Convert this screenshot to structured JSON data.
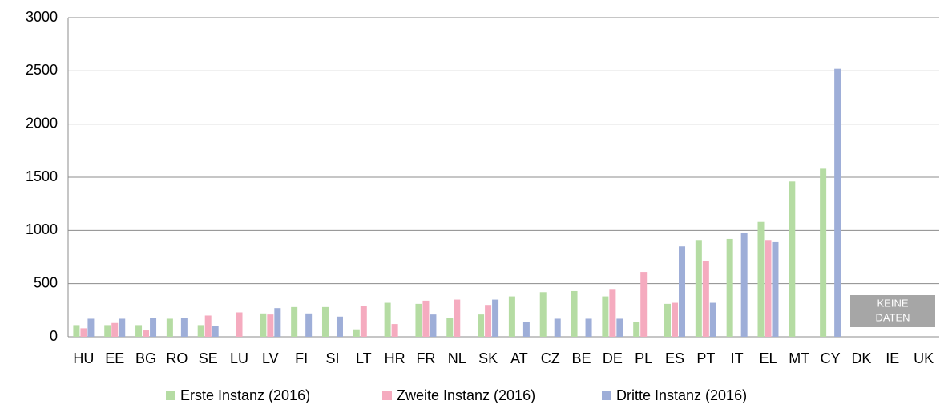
{
  "chart_data": {
    "type": "bar",
    "categories": [
      "HU",
      "EE",
      "BG",
      "RO",
      "SE",
      "LU",
      "LV",
      "FI",
      "SI",
      "LT",
      "HR",
      "FR",
      "NL",
      "SK",
      "AT",
      "CZ",
      "BE",
      "DE",
      "PL",
      "ES",
      "PT",
      "IT",
      "EL",
      "MT",
      "CY",
      "DK",
      "IE",
      "UK"
    ],
    "series": [
      {
        "name": "Erste Instanz (2016)",
        "color": "#b5dca3",
        "values": [
          110,
          110,
          110,
          170,
          110,
          null,
          220,
          280,
          280,
          70,
          320,
          310,
          180,
          210,
          380,
          420,
          430,
          380,
          140,
          310,
          910,
          920,
          1080,
          1460,
          1580,
          null,
          null,
          null
        ]
      },
      {
        "name": "Zweite Instanz (2016)",
        "color": "#f5abbf",
        "values": [
          80,
          130,
          60,
          null,
          200,
          230,
          210,
          null,
          null,
          290,
          120,
          340,
          350,
          300,
          null,
          null,
          null,
          450,
          610,
          320,
          710,
          null,
          910,
          null,
          null,
          null,
          null,
          null
        ]
      },
      {
        "name": "Dritte Instanz (2016)",
        "color": "#9eaed8",
        "values": [
          170,
          170,
          180,
          180,
          100,
          null,
          270,
          220,
          190,
          null,
          null,
          210,
          null,
          350,
          140,
          170,
          170,
          170,
          null,
          850,
          320,
          980,
          890,
          null,
          2520,
          null,
          null,
          null
        ]
      }
    ],
    "ylim": [
      0,
      3000
    ],
    "yticks": [
      0,
      500,
      1000,
      1500,
      2000,
      2500,
      3000
    ],
    "grid": true,
    "legend": "bottom",
    "annotation": [
      "KEINE",
      "DATEN"
    ]
  }
}
